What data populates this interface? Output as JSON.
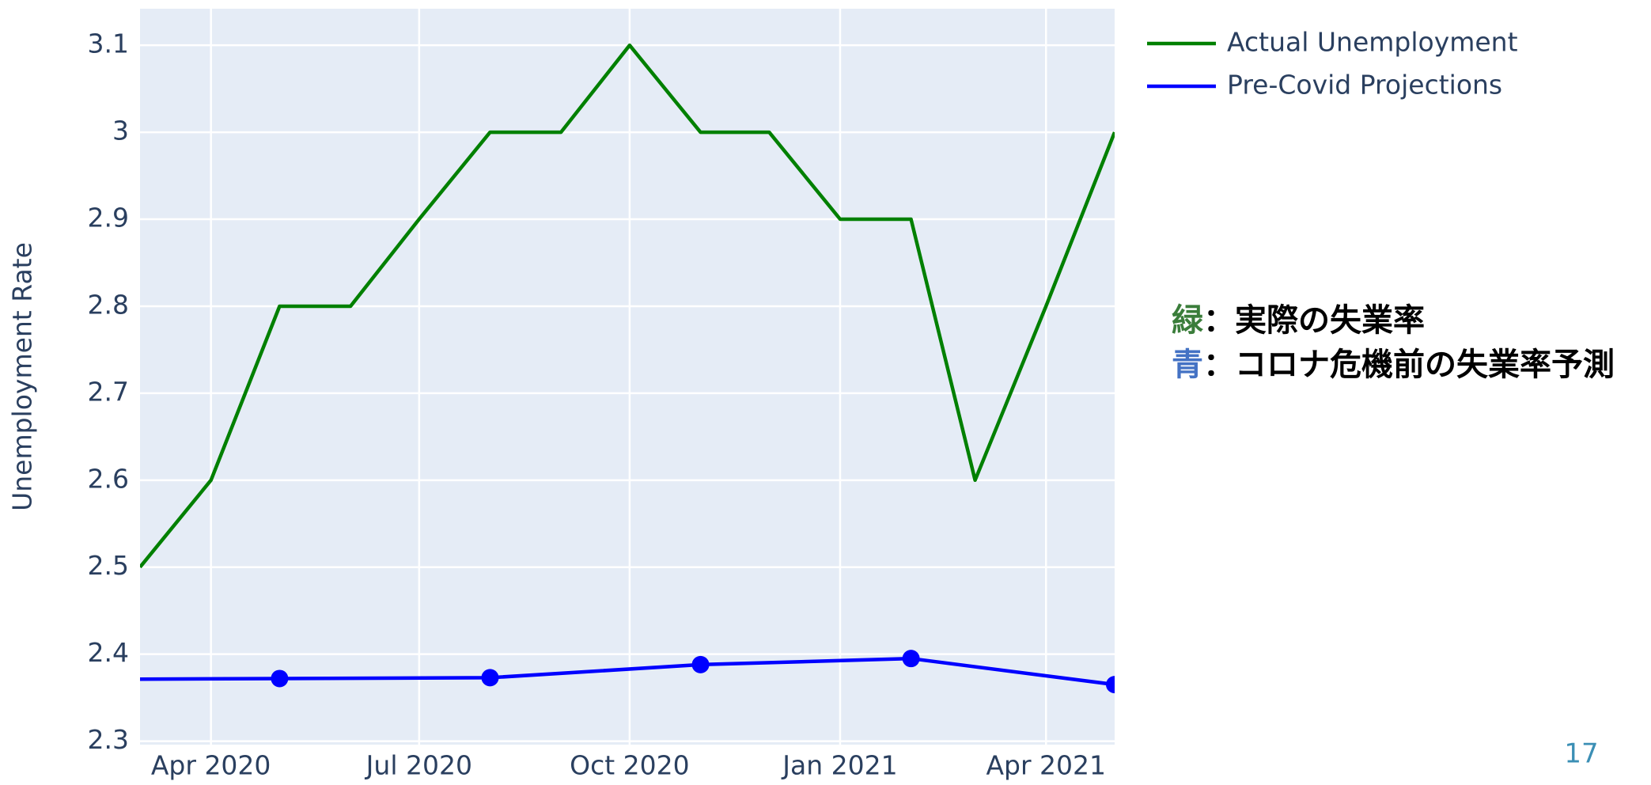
{
  "chart_data": {
    "type": "line",
    "y_label": "Unemployment Rate",
    "xlim": [
      "2020-03",
      "2021-05"
    ],
    "xticks": [
      {
        "value": "2020-04",
        "label": "Apr 2020"
      },
      {
        "value": "2020-07",
        "label": "Jul 2020"
      },
      {
        "value": "2020-10",
        "label": "Oct 2020"
      },
      {
        "value": "2021-01",
        "label": "Jan 2021"
      },
      {
        "value": "2021-04",
        "label": "Apr 2021"
      }
    ],
    "ylim": [
      2.296,
      3.142
    ],
    "yticks": [
      2.3,
      2.4,
      2.5,
      2.6,
      2.7,
      2.8,
      2.9,
      {
        "value": 3,
        "label": "3"
      },
      3.1
    ],
    "grid": true,
    "legend": "top-right",
    "series": [
      {
        "name": "Actual Unemployment",
        "color": "#008000",
        "markers": false,
        "x": [
          "2020-03",
          "2020-04",
          "2020-05",
          "2020-06",
          "2020-07",
          "2020-08",
          "2020-09",
          "2020-10",
          "2020-11",
          "2020-12",
          "2021-01",
          "2021-02",
          "2021-03",
          "2021-04",
          "2021-05"
        ],
        "values": [
          2.5,
          2.6,
          2.8,
          2.8,
          2.9,
          3.0,
          3.0,
          3.1,
          3.0,
          3.0,
          2.9,
          2.9,
          2.6,
          2.8,
          3.0
        ]
      },
      {
        "name": "Pre-Covid Projections",
        "color": "#0000ff",
        "markers": true,
        "x": [
          "2020-02",
          "2020-05",
          "2020-08",
          "2020-11",
          "2021-02",
          "2021-05"
        ],
        "values": [
          2.371,
          2.372,
          2.373,
          2.388,
          2.395,
          2.365
        ]
      }
    ],
    "annotations": [
      {
        "key": "緑",
        "key_color": "#3a7d3a",
        "text": "：実際の失業率"
      },
      {
        "key": "青",
        "key_color": "#4472c4",
        "text": "：コロナ危機前の失業率予測"
      }
    ],
    "page_number": "17"
  }
}
